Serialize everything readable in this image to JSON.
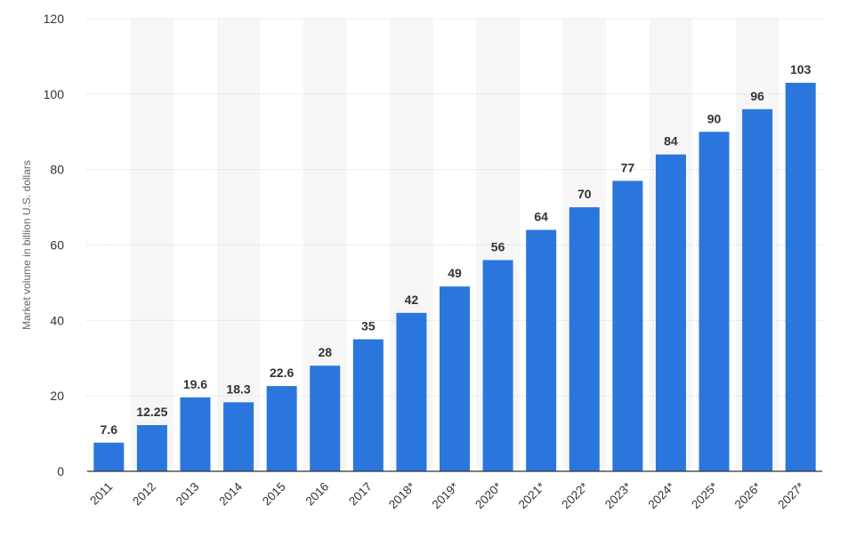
{
  "chart_data": {
    "type": "bar",
    "categories": [
      "2011",
      "2012",
      "2013",
      "2014",
      "2015",
      "2016",
      "2017",
      "2018*",
      "2019*",
      "2020*",
      "2021*",
      "2022*",
      "2023*",
      "2024*",
      "2025*",
      "2026*",
      "2027*"
    ],
    "values": [
      7.6,
      12.25,
      19.6,
      18.3,
      22.6,
      28,
      35,
      42,
      49,
      56,
      64,
      70,
      77,
      84,
      90,
      96,
      103
    ],
    "value_labels": [
      "7.6",
      "12.25",
      "19.6",
      "18.3",
      "22.6",
      "28",
      "35",
      "42",
      "49",
      "56",
      "64",
      "70",
      "77",
      "84",
      "90",
      "96",
      "103"
    ],
    "title": "",
    "xlabel": "",
    "ylabel": "Market volume in billion U.S. dollars",
    "ylim": [
      0,
      120
    ],
    "yticks": [
      0,
      20,
      40,
      60,
      80,
      100,
      120
    ],
    "ytick_labels": [
      "0",
      "20",
      "40",
      "60",
      "80",
      "100",
      "120"
    ],
    "grid": true,
    "bar_color": "#2a76dd",
    "band_color": "#f6f6f6",
    "gridline_color": "#d0d0d0"
  }
}
